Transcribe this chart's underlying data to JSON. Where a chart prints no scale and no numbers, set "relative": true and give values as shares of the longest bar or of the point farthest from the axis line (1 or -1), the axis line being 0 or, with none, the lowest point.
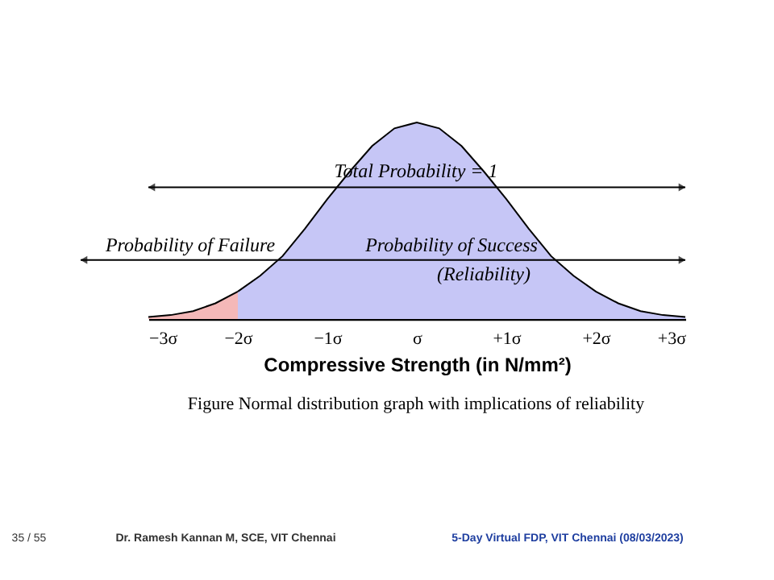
{
  "chart_data": {
    "type": "area",
    "relative": true,
    "xlabel": "Compressive Strength (in N/mm²)",
    "xlim": [
      -3,
      3
    ],
    "xticks": [
      {
        "value": -3,
        "label": "−3σ"
      },
      {
        "value": -2,
        "label": "−2σ"
      },
      {
        "value": -1,
        "label": "−1σ"
      },
      {
        "value": 0,
        "label": "σ"
      },
      {
        "value": 1,
        "label": "+1σ"
      },
      {
        "value": 2,
        "label": "+2σ"
      },
      {
        "value": 3,
        "label": "+3σ"
      }
    ],
    "tick_labels": "x",
    "grid": false,
    "series": [
      {
        "color": "#f4b8b8",
        "x": [
          -3,
          -2.75,
          -2.5,
          -2.25,
          -2
        ],
        "values": [
          0.01,
          0.02,
          0.04,
          0.08,
          0.14
        ]
      },
      {
        "color": "#c6c6f6",
        "x": [
          -2,
          -1.75,
          -1.5,
          -1.25,
          -1,
          -0.75,
          -0.5,
          -0.25,
          0,
          0.25,
          0.5,
          0.75,
          1,
          1.25,
          1.5,
          1.75,
          2,
          2.25,
          2.5,
          2.75,
          3
        ],
        "values": [
          0.14,
          0.22,
          0.32,
          0.46,
          0.61,
          0.75,
          0.88,
          0.97,
          1,
          0.97,
          0.88,
          0.75,
          0.61,
          0.46,
          0.32,
          0.22,
          0.14,
          0.08,
          0.04,
          0.02,
          0.01
        ]
      }
    ],
    "ref_lines": [
      {
        "axis": "y",
        "value": 0.67,
        "color": "#000000"
      },
      {
        "axis": "y",
        "value": 0.3,
        "color": "#000000"
      }
    ],
    "annotations": [
      "Total Probability = 1",
      "Probability of Failure",
      "Probability of Success",
      "(Reliability)",
      "Figure Normal distribution graph with implications of reliability",
      "35 / 55",
      "Dr. Ramesh Kannan M, SCE, VIT Chennai",
      "5-Day Virtual FDP, VIT Chennai (08/03/2023)"
    ]
  }
}
